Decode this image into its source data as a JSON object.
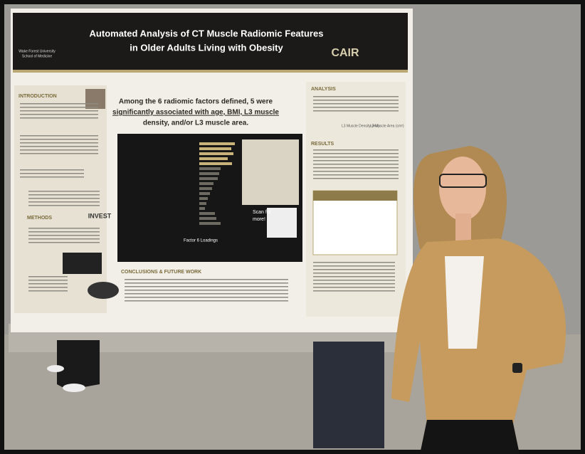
{
  "poster": {
    "title_lines": [
      "Automated Analysis of CT Muscle Radiomic Features",
      "in Older Adults Living with Obesity"
    ],
    "institution": [
      "Wake Forest University",
      "School of Medicine"
    ],
    "logo": "CAIR",
    "headline_lines": [
      "Among the 6 radiomic factors defined, 5 were",
      "significantly associated with age, BMI, L3 muscle",
      "density, and/or L3 muscle area."
    ],
    "sections": [
      "INTRODUCTION",
      "METHODS",
      "ANALYSIS",
      "RESULTS",
      "CONCLUSIONS & FUTURE WORK"
    ],
    "invest": "INVEST",
    "chart_label": "Factor 6 Loadings",
    "scan": [
      "Scan for",
      "more!"
    ],
    "outcomes": [
      "L3 Muscle Density (HU)",
      "L3 Muscle Area (cm²)"
    ]
  }
}
